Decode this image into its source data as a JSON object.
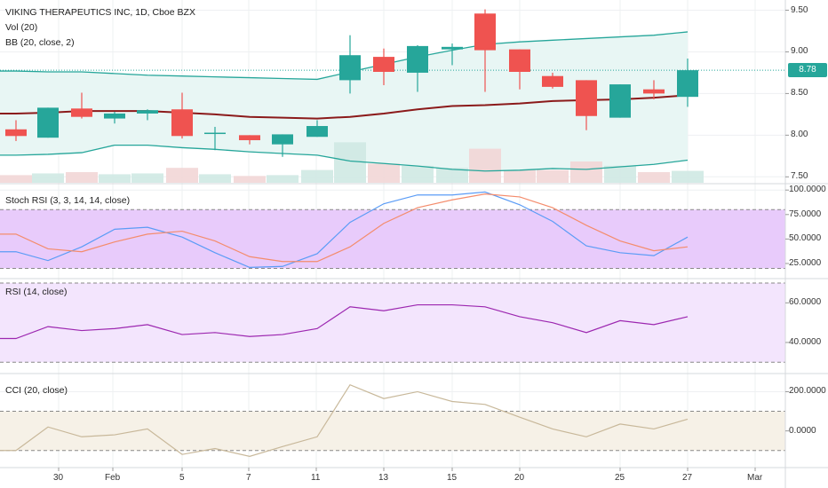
{
  "colors": {
    "up": "#26a69a",
    "down": "#ef5350",
    "bb_band": "#26a69a",
    "bb_basis": "#8b1a1a",
    "bb_fill": "#e8f6f4",
    "stoch_k": "#5b9cf6",
    "stoch_d": "#f48c6c",
    "stoch_bg": "#e8cbfb",
    "rsi_line": "#9c27b0",
    "rsi_bg": "#f3e5fd",
    "cci_line": "#c8b89a",
    "cci_bg": "#f6f1e7",
    "grid": "#eef0f2",
    "axis_text": "#4a4a4a",
    "last_price": "#26a69a"
  },
  "titles": {
    "main_line1": "VIKING THERAPEUTICS INC, 1D, Cboe BZX",
    "main_line2": "Vol (20)",
    "main_line3": "BB (20, close, 2)",
    "stoch": "Stoch RSI (3, 3, 14, 14, close)",
    "rsi": "RSI (14, close)",
    "cci": "CCI (20, close)"
  },
  "last_price_label": "8.78",
  "x_axis_labels": [
    "30",
    "Feb",
    "5",
    "7",
    "11",
    "13",
    "15",
    "20",
    "25",
    "27",
    "Mar"
  ],
  "chart_data": [
    {
      "type": "candlestick",
      "title": "VIKING THERAPEUTICS INC, 1D, Cboe BZX",
      "ylim": [
        7.45,
        9.58
      ],
      "yticks": [
        "9.50",
        "9.00",
        "8.50",
        "8.00",
        "7.50"
      ],
      "candles": [
        {
          "o": 8.07,
          "h": 8.18,
          "l": 7.93,
          "c": 7.99
        },
        {
          "o": 7.97,
          "h": 8.33,
          "l": 7.97,
          "c": 8.33
        },
        {
          "o": 8.32,
          "h": 8.51,
          "l": 8.2,
          "c": 8.22
        },
        {
          "o": 8.2,
          "h": 8.28,
          "l": 8.14,
          "c": 8.26
        },
        {
          "o": 8.26,
          "h": 8.31,
          "l": 8.18,
          "c": 8.3
        },
        {
          "o": 8.31,
          "h": 8.51,
          "l": 7.96,
          "c": 7.99
        },
        {
          "o": 8.03,
          "h": 8.1,
          "l": 7.82,
          "c": 8.03
        },
        {
          "o": 8.0,
          "h": 8.0,
          "l": 7.89,
          "c": 7.94
        },
        {
          "o": 7.89,
          "h": 8.01,
          "l": 7.74,
          "c": 8.01
        },
        {
          "o": 7.98,
          "h": 8.18,
          "l": 7.98,
          "c": 8.11
        },
        {
          "o": 8.66,
          "h": 9.2,
          "l": 8.5,
          "c": 8.96
        },
        {
          "o": 8.94,
          "h": 9.04,
          "l": 8.6,
          "c": 8.76
        },
        {
          "o": 8.75,
          "h": 9.08,
          "l": 8.52,
          "c": 9.07
        },
        {
          "o": 9.03,
          "h": 9.1,
          "l": 8.84,
          "c": 9.06
        },
        {
          "o": 9.46,
          "h": 9.51,
          "l": 8.52,
          "c": 9.02
        },
        {
          "o": 9.03,
          "h": 9.03,
          "l": 8.55,
          "c": 8.76
        },
        {
          "o": 8.71,
          "h": 8.75,
          "l": 8.56,
          "c": 8.58
        },
        {
          "o": 8.66,
          "h": 8.66,
          "l": 8.06,
          "c": 8.23
        },
        {
          "o": 8.21,
          "h": 8.61,
          "l": 8.21,
          "c": 8.61
        },
        {
          "o": 8.55,
          "h": 8.66,
          "l": 8.43,
          "c": 8.5
        },
        {
          "o": 8.46,
          "h": 8.92,
          "l": 8.34,
          "c": 8.78
        }
      ],
      "volume": [
        0.18,
        0.22,
        0.25,
        0.2,
        0.22,
        0.35,
        0.2,
        0.16,
        0.18,
        0.3,
        0.95,
        0.45,
        0.4,
        0.35,
        0.8,
        0.3,
        0.3,
        0.5,
        0.4,
        0.25,
        0.28
      ],
      "bb_upper": [
        8.77,
        8.76,
        8.76,
        8.74,
        8.72,
        8.71,
        8.7,
        8.69,
        8.68,
        8.67,
        8.76,
        8.85,
        8.94,
        9.02,
        9.09,
        9.12,
        9.14,
        9.16,
        9.18,
        9.2,
        9.24
      ],
      "bb_basis": [
        8.26,
        8.27,
        8.29,
        8.29,
        8.29,
        8.27,
        8.25,
        8.22,
        8.21,
        8.2,
        8.22,
        8.26,
        8.31,
        8.35,
        8.36,
        8.38,
        8.41,
        8.42,
        8.43,
        8.45,
        8.48
      ],
      "bb_lower": [
        7.76,
        7.77,
        7.79,
        7.88,
        7.88,
        7.85,
        7.83,
        7.8,
        7.78,
        7.76,
        7.69,
        7.66,
        7.63,
        7.59,
        7.57,
        7.58,
        7.6,
        7.59,
        7.62,
        7.65,
        7.7
      ]
    },
    {
      "type": "line",
      "title": "Stoch RSI (3, 3, 14, 14, close)",
      "ylim": [
        15,
        102
      ],
      "yticks": [
        "100.0000",
        "75.0000",
        "50.0000",
        "25.0000"
      ],
      "bands": [
        20,
        80
      ],
      "series": [
        {
          "name": "K",
          "values": [
            37,
            28,
            42,
            60,
            62,
            52,
            36,
            21,
            22,
            35,
            67,
            86,
            95,
            95,
            98,
            85,
            68,
            43,
            36,
            33,
            52
          ]
        },
        {
          "name": "D",
          "values": [
            55,
            40,
            37,
            47,
            55,
            58,
            48,
            32,
            27,
            27,
            42,
            66,
            82,
            90,
            96,
            93,
            82,
            64,
            48,
            38,
            42
          ]
        }
      ]
    },
    {
      "type": "line",
      "title": "RSI (14, close)",
      "ylim": [
        27,
        70
      ],
      "yticks": [
        "60.0000",
        "40.0000"
      ],
      "bands": [
        30,
        70
      ],
      "series": [
        {
          "name": "RSI",
          "values": [
            42,
            48,
            46,
            47,
            49,
            44,
            45,
            43,
            44,
            47,
            58,
            56,
            59,
            59,
            58,
            53,
            50,
            45,
            51,
            49,
            53
          ]
        }
      ]
    },
    {
      "type": "line",
      "title": "CCI (20, close)",
      "ylim": [
        -160,
        270
      ],
      "yticks": [
        "200.0000",
        "0.0000"
      ],
      "bands": [
        -100,
        100
      ],
      "series": [
        {
          "name": "CCI",
          "values": [
            -100,
            20,
            -30,
            -20,
            10,
            -120,
            -90,
            -130,
            -80,
            -30,
            235,
            165,
            200,
            150,
            135,
            70,
            10,
            -30,
            35,
            10,
            60
          ]
        }
      ]
    }
  ]
}
